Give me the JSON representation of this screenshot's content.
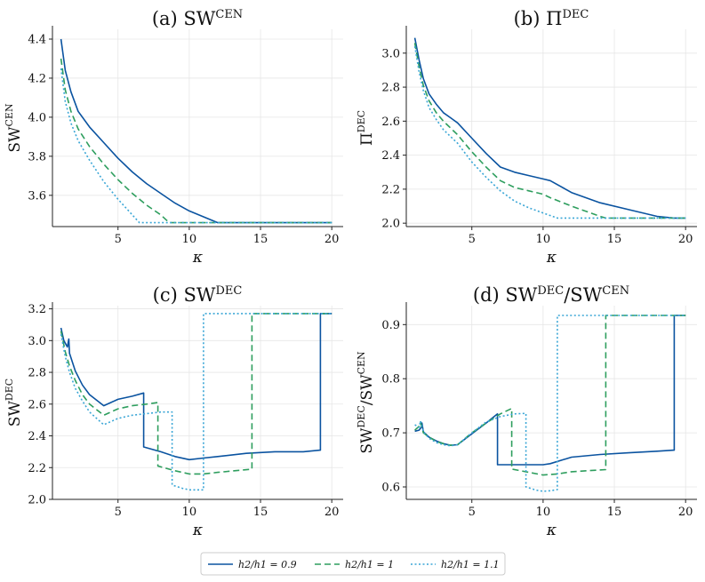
{
  "chart_data": [
    {
      "type": "line",
      "title": "(a) SW",
      "title_sup": "CEN",
      "xlabel": "κ",
      "ylabel": "SW",
      "ylabel_sup": "CEN",
      "xlim": [
        0.4,
        20.8
      ],
      "ylim": [
        3.44,
        4.45
      ],
      "xticks": [
        5,
        10,
        15,
        20
      ],
      "yticks": [
        3.6,
        3.8,
        4.0,
        4.2,
        4.4
      ],
      "ytick_labels": [
        "3.6",
        "3.8",
        "4.0",
        "4.2",
        "4.4"
      ],
      "grid": true,
      "series": [
        {
          "name": "h2/h1 = 0.9",
          "x": [
            1,
            1.3,
            1.7,
            2.2,
            3,
            4,
            5,
            6,
            7,
            8,
            9,
            10,
            11,
            12,
            13,
            15,
            20
          ],
          "y": [
            4.4,
            4.24,
            4.13,
            4.03,
            3.95,
            3.87,
            3.79,
            3.72,
            3.66,
            3.61,
            3.56,
            3.52,
            3.49,
            3.46,
            3.46,
            3.46,
            3.46
          ]
        },
        {
          "name": "h2/h1 = 1",
          "x": [
            1,
            1.3,
            1.7,
            2.2,
            3,
            4,
            5,
            6,
            7,
            8,
            8.6,
            10,
            15,
            20
          ],
          "y": [
            4.3,
            4.14,
            4.03,
            3.94,
            3.85,
            3.76,
            3.68,
            3.61,
            3.55,
            3.5,
            3.46,
            3.46,
            3.46,
            3.46
          ]
        },
        {
          "name": "h2/h1 = 1.1",
          "x": [
            1,
            1.3,
            1.7,
            2.2,
            3,
            4,
            5,
            6,
            6.5,
            10,
            15,
            20
          ],
          "y": [
            4.25,
            4.08,
            3.97,
            3.88,
            3.78,
            3.67,
            3.58,
            3.5,
            3.46,
            3.46,
            3.46,
            3.46
          ]
        }
      ]
    },
    {
      "type": "line",
      "title": "(b) Π",
      "title_sup": "DEC",
      "xlabel": "κ",
      "ylabel": "Π",
      "ylabel_sup": "DEC",
      "xlim": [
        0.4,
        20.8
      ],
      "ylim": [
        1.98,
        3.14
      ],
      "xticks": [
        5,
        10,
        15,
        20
      ],
      "yticks": [
        2.0,
        2.2,
        2.4,
        2.6,
        2.8,
        3.0
      ],
      "ytick_labels": [
        "2.0",
        "2.2",
        "2.4",
        "2.6",
        "2.8",
        "3.0"
      ],
      "grid": true,
      "series": [
        {
          "name": "h2/h1 = 0.9",
          "x": [
            1,
            1.3,
            1.6,
            2,
            2.5,
            3,
            3.5,
            4,
            5,
            6,
            7,
            8,
            9,
            10,
            10.5,
            12,
            14,
            16,
            18,
            19.2,
            20
          ],
          "y": [
            3.09,
            2.96,
            2.85,
            2.76,
            2.7,
            2.65,
            2.62,
            2.59,
            2.5,
            2.41,
            2.33,
            2.3,
            2.28,
            2.26,
            2.25,
            2.18,
            2.12,
            2.08,
            2.04,
            2.03,
            2.03
          ]
        },
        {
          "name": "h2/h1 = 1",
          "x": [
            1,
            1.3,
            1.6,
            2,
            2.5,
            3,
            3.5,
            4,
            5,
            6,
            7,
            8,
            9,
            10,
            10.5,
            12,
            14,
            14.4,
            20
          ],
          "y": [
            3.06,
            2.92,
            2.81,
            2.72,
            2.65,
            2.6,
            2.56,
            2.52,
            2.42,
            2.33,
            2.25,
            2.21,
            2.19,
            2.17,
            2.15,
            2.1,
            2.04,
            2.03,
            2.03
          ]
        },
        {
          "name": "h2/h1 = 1.1",
          "x": [
            1,
            1.3,
            1.6,
            2,
            2.5,
            3,
            3.5,
            4,
            5,
            6,
            7,
            8,
            9,
            10,
            11,
            20
          ],
          "y": [
            3.04,
            2.89,
            2.78,
            2.68,
            2.61,
            2.55,
            2.51,
            2.47,
            2.36,
            2.27,
            2.19,
            2.13,
            2.09,
            2.06,
            2.03,
            2.03
          ]
        }
      ]
    },
    {
      "type": "line",
      "title": "(c) SW",
      "title_sup": "DEC",
      "xlabel": "κ",
      "ylabel": "SW",
      "ylabel_sup": "DEC",
      "xlim": [
        0.4,
        20.8
      ],
      "ylim": [
        2.0,
        3.22
      ],
      "xticks": [
        5,
        10,
        15,
        20
      ],
      "yticks": [
        2.0,
        2.2,
        2.4,
        2.6,
        2.8,
        3.0,
        3.2
      ],
      "ytick_labels": [
        "2.0",
        "2.2",
        "2.4",
        "2.6",
        "2.8",
        "3.0",
        "3.2"
      ],
      "grid": true,
      "series": [
        {
          "name": "h2/h1 = 0.9",
          "x": [
            1,
            1.2,
            1.45,
            1.55,
            1.6,
            2,
            2.5,
            3,
            4,
            5,
            6,
            6.8,
            6.8,
            8,
            9,
            10,
            11,
            12,
            14,
            16,
            18,
            19.2,
            19.2,
            20
          ],
          "y": [
            3.08,
            3.0,
            2.96,
            3.01,
            2.92,
            2.81,
            2.72,
            2.66,
            2.59,
            2.63,
            2.65,
            2.67,
            2.33,
            2.3,
            2.27,
            2.25,
            2.26,
            2.27,
            2.29,
            2.3,
            2.3,
            2.31,
            3.17,
            3.17
          ]
        },
        {
          "name": "h2/h1 = 1",
          "x": [
            1,
            1.3,
            1.6,
            2,
            2.5,
            3,
            4,
            5,
            6,
            7,
            7.8,
            7.8,
            9,
            10,
            11,
            12,
            14.4,
            14.4,
            20
          ],
          "y": [
            3.06,
            2.93,
            2.84,
            2.75,
            2.66,
            2.6,
            2.53,
            2.57,
            2.59,
            2.6,
            2.61,
            2.21,
            2.18,
            2.16,
            2.16,
            2.17,
            2.19,
            3.17,
            3.17
          ]
        },
        {
          "name": "h2/h1 = 1.1",
          "x": [
            1,
            1.3,
            1.6,
            2,
            2.5,
            3,
            4,
            5,
            6,
            7,
            8,
            8.8,
            8.8,
            9.5,
            10,
            10.5,
            11,
            11,
            20
          ],
          "y": [
            3.04,
            2.9,
            2.8,
            2.7,
            2.62,
            2.55,
            2.47,
            2.51,
            2.53,
            2.54,
            2.55,
            2.55,
            2.09,
            2.07,
            2.06,
            2.06,
            2.06,
            3.17,
            3.17
          ]
        }
      ]
    },
    {
      "type": "line",
      "title": "(d) SW",
      "title_sup": "DEC",
      "title_mid": "/SW",
      "title_sup2": "CEN",
      "xlabel": "κ",
      "ylabel": "SW",
      "ylabel_sup": "DEC",
      "ylabel_mid": "/SW",
      "ylabel_sup2": "CEN",
      "xlim": [
        0.4,
        20.8
      ],
      "ylim": [
        0.577,
        0.935
      ],
      "xticks": [
        5,
        10,
        15,
        20
      ],
      "yticks": [
        0.6,
        0.7,
        0.8,
        0.9
      ],
      "ytick_labels": [
        "0.6",
        "0.7",
        "0.8",
        "0.9"
      ],
      "grid": true,
      "series": [
        {
          "name": "h2/h1 = 0.9",
          "x": [
            1,
            1.3,
            1.45,
            1.5,
            1.6,
            2,
            2.5,
            3,
            3.5,
            4,
            5,
            6,
            6.8,
            6.8,
            8,
            9,
            10,
            10.5,
            12,
            14,
            16,
            18,
            19.2,
            19.2,
            20
          ],
          "y": [
            0.703,
            0.705,
            0.71,
            0.718,
            0.702,
            0.692,
            0.685,
            0.68,
            0.677,
            0.678,
            0.698,
            0.718,
            0.735,
            0.641,
            0.641,
            0.641,
            0.641,
            0.643,
            0.655,
            0.66,
            0.663,
            0.666,
            0.668,
            0.917,
            0.917
          ]
        },
        {
          "name": "h2/h1 = 1",
          "x": [
            1,
            1.3,
            1.4,
            1.6,
            2,
            2.5,
            3,
            3.5,
            4,
            5,
            6,
            7,
            7.8,
            7.8,
            9,
            10,
            11,
            12,
            14.4,
            14.4,
            20
          ],
          "y": [
            0.705,
            0.712,
            0.72,
            0.7,
            0.692,
            0.684,
            0.68,
            0.677,
            0.678,
            0.7,
            0.718,
            0.735,
            0.745,
            0.633,
            0.627,
            0.622,
            0.624,
            0.628,
            0.632,
            0.917,
            0.917
          ]
        },
        {
          "name": "h2/h1 = 1.1",
          "x": [
            1,
            1.3,
            1.4,
            1.6,
            2,
            2.5,
            3,
            3.5,
            4,
            5,
            6,
            7,
            8,
            8.8,
            8.8,
            9.5,
            10,
            10.5,
            11,
            11,
            20
          ],
          "y": [
            0.715,
            0.71,
            0.722,
            0.702,
            0.69,
            0.682,
            0.678,
            0.676,
            0.678,
            0.7,
            0.72,
            0.73,
            0.735,
            0.736,
            0.6,
            0.594,
            0.592,
            0.593,
            0.595,
            0.917,
            0.917
          ]
        }
      ]
    }
  ],
  "legend": {
    "placement": "bottom-center",
    "items": [
      {
        "label": "h2/h1 = 0.9",
        "color": "#0a53a0",
        "style": "solid"
      },
      {
        "label": "h2/h1 = 1",
        "color": "#2e9e5e",
        "style": "dashed"
      },
      {
        "label": "h2/h1 = 1.1",
        "color": "#3aa6d6",
        "style": "dotted"
      }
    ]
  },
  "colors": [
    "#0a53a0",
    "#2e9e5e",
    "#3aa6d6"
  ],
  "dash": [
    "",
    "7 4",
    "2 2.5"
  ]
}
